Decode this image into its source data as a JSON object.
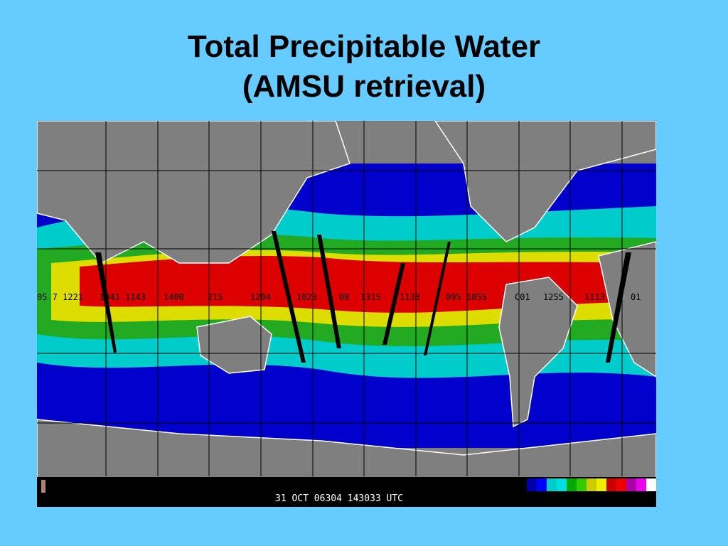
{
  "title": {
    "line1": "Total Precipitable Water",
    "line2": "(AMSU retrieval)"
  },
  "map": {
    "timestamp": "31 OCT 06304 143033 UTC",
    "orbit_labels": [
      "05 7 1221",
      "1041 1143",
      "1400",
      "215",
      "1204",
      "1023",
      "08",
      "1315",
      "1133",
      "095 1055",
      "C01",
      "1255",
      "1113",
      "01"
    ],
    "colorbar": [
      "#0000aa",
      "#0000ff",
      "#00cccc",
      "#00e0e0",
      "#00aa00",
      "#33cc00",
      "#cccc00",
      "#eeee00",
      "#cc0000",
      "#ee0000",
      "#aa00aa",
      "#ee00ee",
      "#ffffff"
    ],
    "colors": {
      "land": "#7f7f7f",
      "coast": "#ffffff",
      "grid": "#000000",
      "very_dry": "#0000cc",
      "dry": "#00cccc",
      "moderate": "#22aa22",
      "moist": "#dddd00",
      "wet": "#dd0000"
    }
  }
}
